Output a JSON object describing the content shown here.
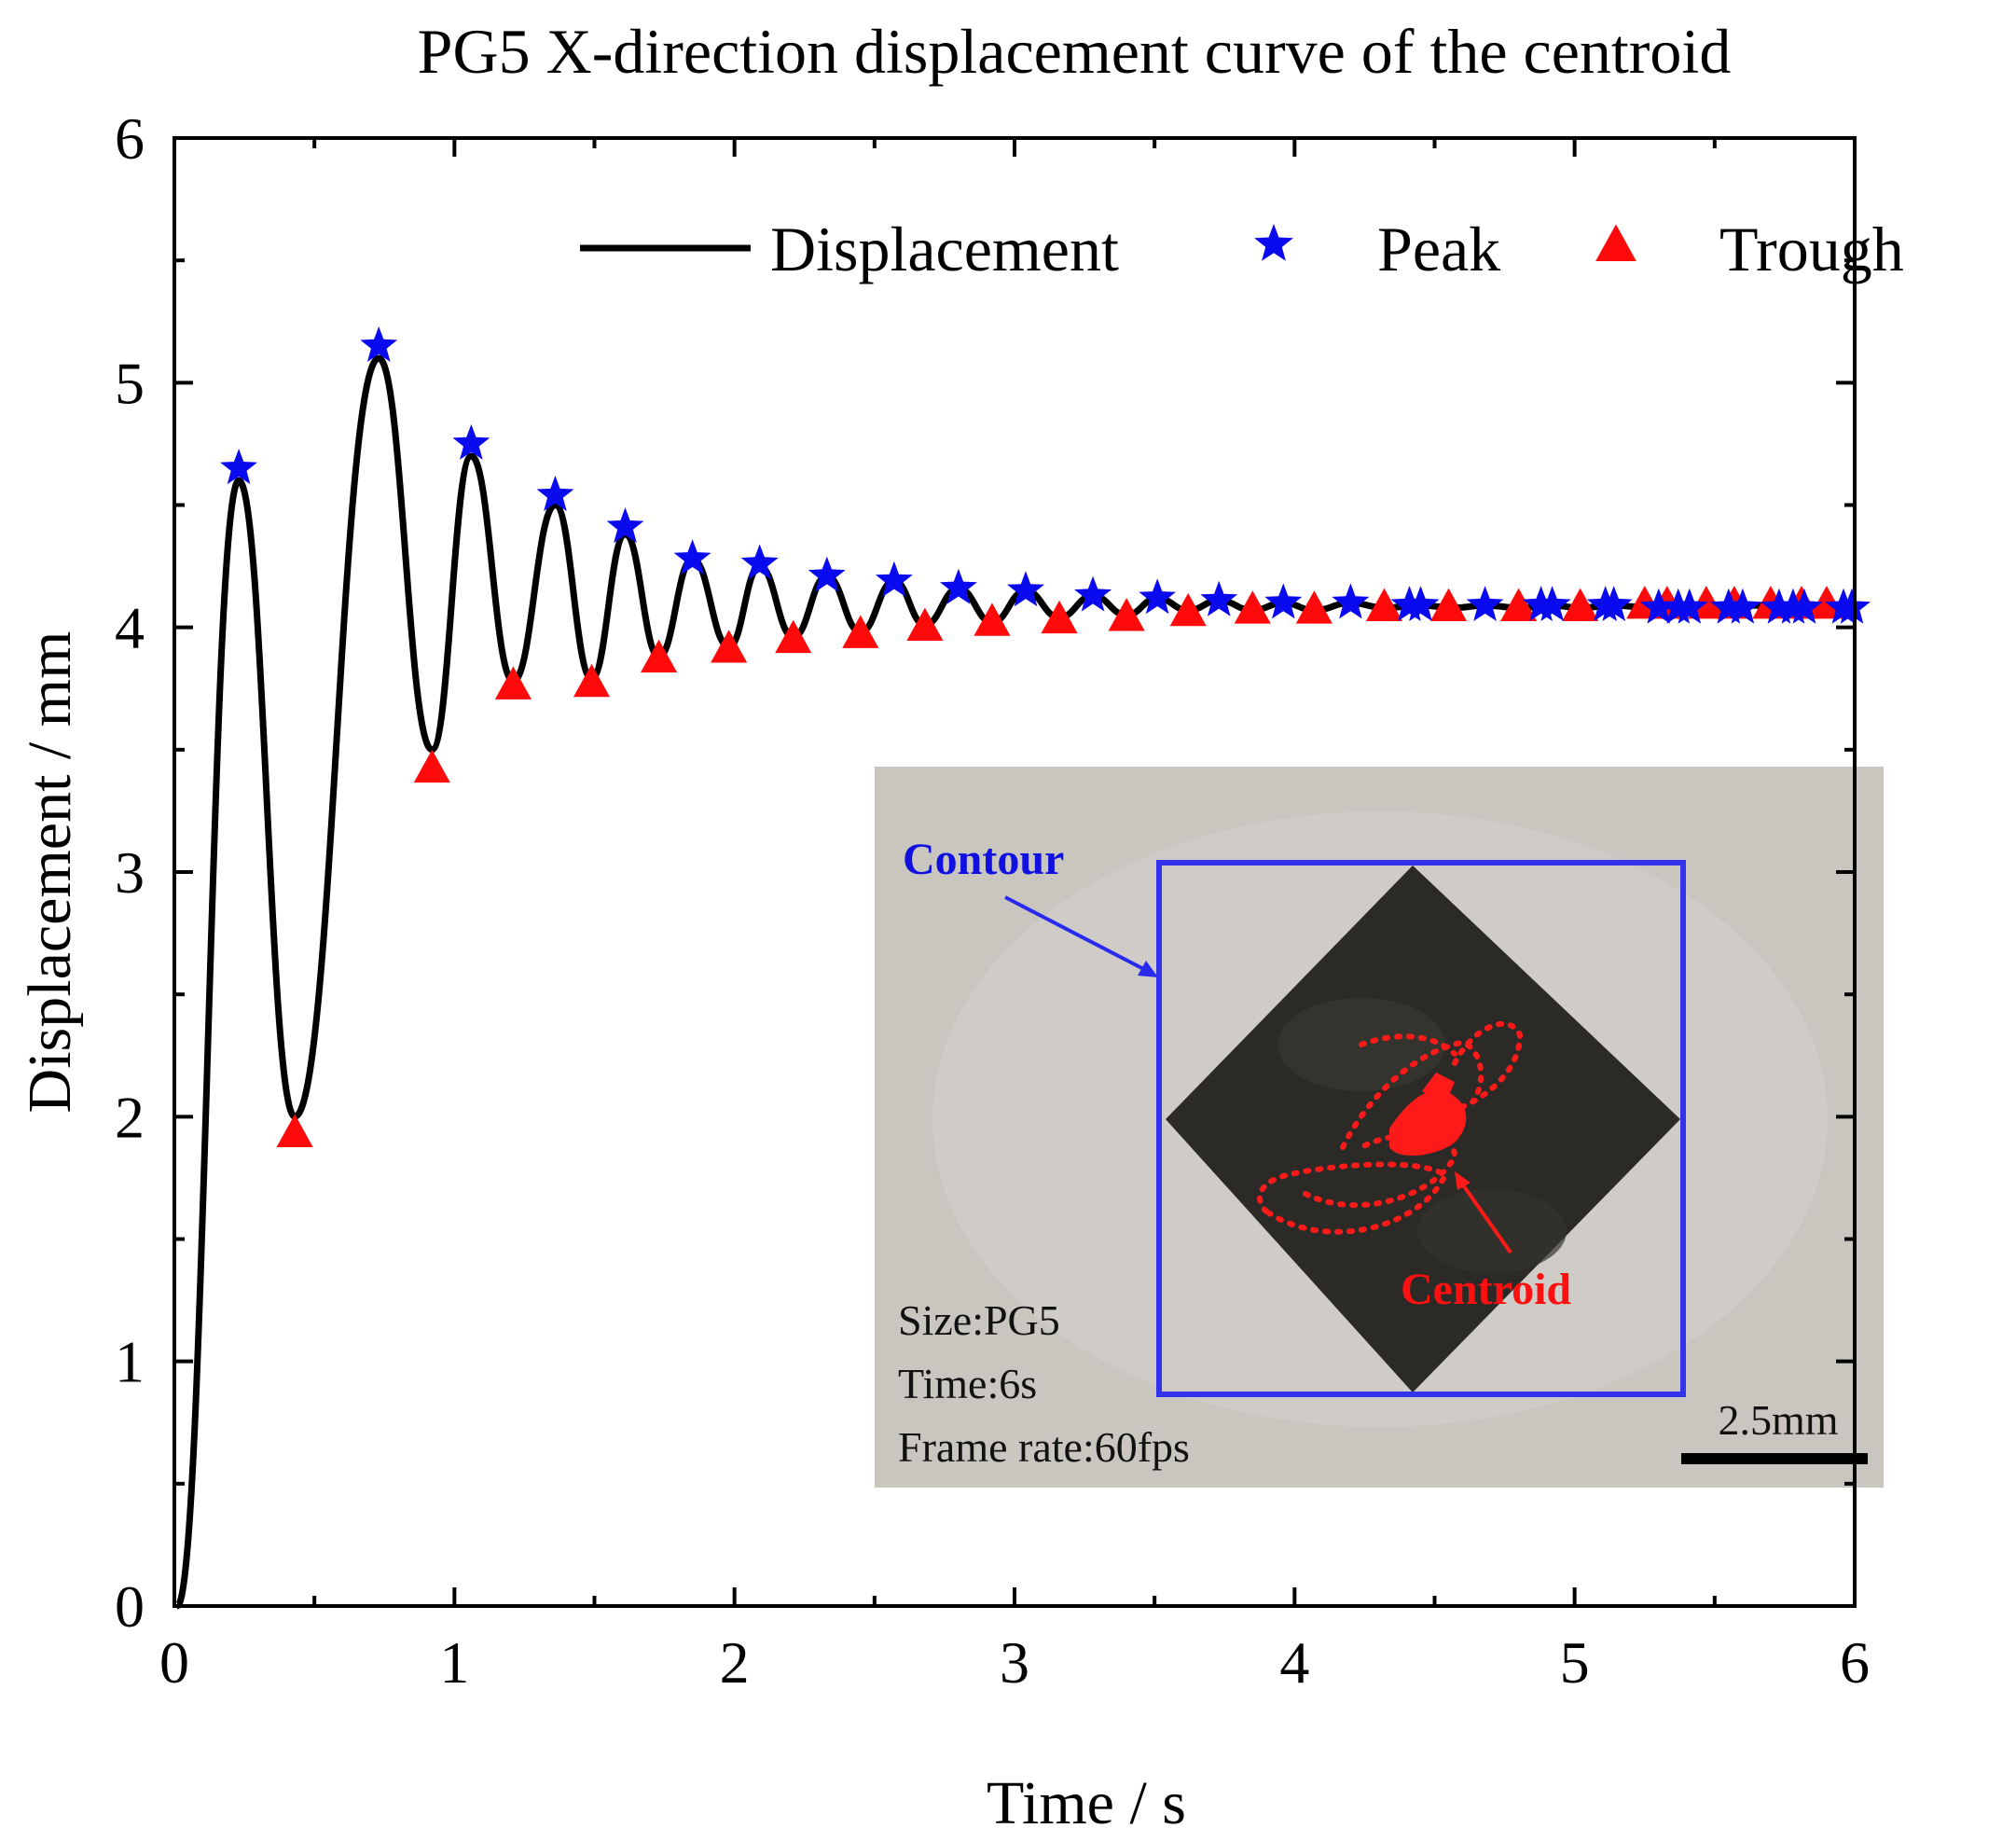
{
  "chart_data": {
    "type": "line",
    "title": "PG5 X-direction displacement curve of the centroid",
    "xlabel": "Time / s",
    "ylabel": "Displacement / mm",
    "xlim": [
      0,
      6
    ],
    "ylim": [
      0,
      6
    ],
    "xticks": [
      "0",
      "1",
      "2",
      "3",
      "4",
      "5",
      "6"
    ],
    "yticks": [
      "0",
      "1",
      "2",
      "3",
      "4",
      "5",
      "6"
    ],
    "grid": false,
    "legend_position": "top-right",
    "series": [
      {
        "name": "Displacement",
        "kind": "line",
        "color": "#000000",
        "x": [
          0.01,
          0.23,
          0.43,
          0.73,
          0.92,
          1.06,
          1.21,
          1.36,
          1.49,
          1.61,
          1.73,
          1.85,
          1.98,
          2.09,
          2.21,
          2.33,
          2.45,
          2.57,
          2.68,
          2.8,
          2.92,
          3.04,
          3.16,
          3.28,
          3.4,
          3.51,
          3.62,
          3.73,
          3.85,
          3.96,
          4.07,
          4.2,
          4.32,
          4.45,
          4.57,
          4.68,
          4.8,
          4.92,
          5.02,
          5.14,
          5.27,
          5.4,
          5.52,
          5.64,
          5.76,
          5.88,
          6.0
        ],
        "y": [
          0.0,
          4.6,
          2.0,
          5.1,
          3.5,
          4.7,
          3.78,
          4.5,
          3.79,
          4.38,
          3.88,
          4.28,
          3.92,
          4.25,
          3.96,
          4.21,
          3.98,
          4.19,
          4.01,
          4.16,
          4.02,
          4.15,
          4.04,
          4.13,
          4.05,
          4.12,
          4.07,
          4.11,
          4.07,
          4.1,
          4.07,
          4.1,
          4.08,
          4.09,
          4.08,
          4.09,
          4.08,
          4.09,
          4.08,
          4.09,
          4.08,
          4.09,
          4.08,
          4.09,
          4.08,
          4.09,
          4.08
        ]
      },
      {
        "name": "Peak",
        "kind": "star",
        "color": "#0a0aee",
        "x": [
          0.23,
          0.73,
          1.06,
          1.36,
          1.61,
          1.85,
          2.09,
          2.33,
          2.57,
          2.8,
          3.04,
          3.28,
          3.51,
          3.73,
          3.96,
          4.2,
          4.41,
          4.45,
          4.68,
          4.88,
          4.92,
          5.11,
          5.14,
          5.3,
          5.37,
          5.41,
          5.55,
          5.6,
          5.73,
          5.78,
          5.82,
          5.96,
          5.99
        ],
        "y": [
          4.65,
          5.15,
          4.75,
          4.54,
          4.41,
          4.28,
          4.26,
          4.21,
          4.19,
          4.16,
          4.15,
          4.13,
          4.12,
          4.11,
          4.1,
          4.1,
          4.09,
          4.09,
          4.09,
          4.09,
          4.09,
          4.09,
          4.09,
          4.08,
          4.08,
          4.08,
          4.08,
          4.08,
          4.08,
          4.08,
          4.08,
          4.08,
          4.08
        ]
      },
      {
        "name": "Trough",
        "kind": "triangle",
        "color": "#ff0a0a",
        "x": [
          0.43,
          0.92,
          1.21,
          1.49,
          1.73,
          1.98,
          2.21,
          2.45,
          2.68,
          2.92,
          3.16,
          3.4,
          3.62,
          3.85,
          4.07,
          4.32,
          4.55,
          4.8,
          5.02,
          5.25,
          5.33,
          5.47,
          5.57,
          5.7,
          5.81,
          5.9
        ],
        "y": [
          1.93,
          3.42,
          3.76,
          3.77,
          3.87,
          3.91,
          3.95,
          3.97,
          4.0,
          4.02,
          4.03,
          4.04,
          4.06,
          4.07,
          4.07,
          4.08,
          4.08,
          4.08,
          4.08,
          4.09,
          4.09,
          4.09,
          4.09,
          4.09,
          4.09,
          4.09
        ]
      }
    ],
    "inset": {
      "contour_label": "Contour",
      "centroid_label": "Centroid",
      "info_lines": [
        "Size:PG5",
        "Time:6s",
        "Frame rate:60fps"
      ],
      "scale_bar": "2.5mm",
      "colors": {
        "background": "#c9c6c0",
        "particle": "#2b2a26",
        "contour": "#3333ee",
        "centroid_trace": "#ff1a1a"
      }
    }
  }
}
